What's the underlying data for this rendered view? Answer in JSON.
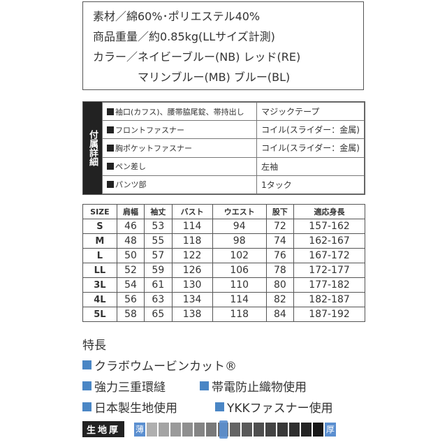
{
  "spec": [
    "素材／綿60%･ポリエステル40%",
    "商品重量／約0.85kg(LLサイズ計測)",
    "カラー／ネイビーブルー(NB) レッド(RE)",
    "　　　　マリンブルー(MB) ブルー(BL)"
  ],
  "accessories": {
    "side_label": "付属詳細",
    "rows": [
      {
        "item": "袖口(カフス)、腰帯脇尾錠、帯持出し",
        "value": "マジックテープ"
      },
      {
        "item": "フロントファスナー",
        "value": "コイル(スライダー：金属)"
      },
      {
        "item": "胸ポケットファスナー",
        "value": "コイル(スライダー：金属)"
      },
      {
        "item": "ペン差し",
        "value": "左袖"
      },
      {
        "item": "パンツ部",
        "value": "1タック"
      }
    ]
  },
  "size_table": {
    "headers": [
      "SIZE",
      "肩幅",
      "袖丈",
      "バスト",
      "ウエスト",
      "股下",
      "適応身長"
    ],
    "rows": [
      [
        "S",
        "46",
        "53",
        "114",
        "94",
        "72",
        "157-162"
      ],
      [
        "M",
        "48",
        "55",
        "118",
        "98",
        "74",
        "162-167"
      ],
      [
        "L",
        "50",
        "57",
        "122",
        "102",
        "76",
        "167-172"
      ],
      [
        "LL",
        "52",
        "59",
        "126",
        "106",
        "78",
        "172-177"
      ],
      [
        "3L",
        "54",
        "61",
        "130",
        "110",
        "80",
        "177-182"
      ],
      [
        "4L",
        "56",
        "63",
        "134",
        "114",
        "82",
        "182-187"
      ],
      [
        "5L",
        "58",
        "65",
        "138",
        "118",
        "84",
        "187-192"
      ]
    ]
  },
  "features": {
    "title": "特長",
    "items": [
      "クラボウムービンカット®",
      "強力三重環縫",
      "帯電防止織物使用",
      "日本製生地使用",
      "YKKファスナー使用"
    ],
    "accent": "#4a86c5"
  },
  "thickness": {
    "label": "生地厚",
    "thin": "薄",
    "thick": "厚",
    "level": 7,
    "steps": 15
  }
}
